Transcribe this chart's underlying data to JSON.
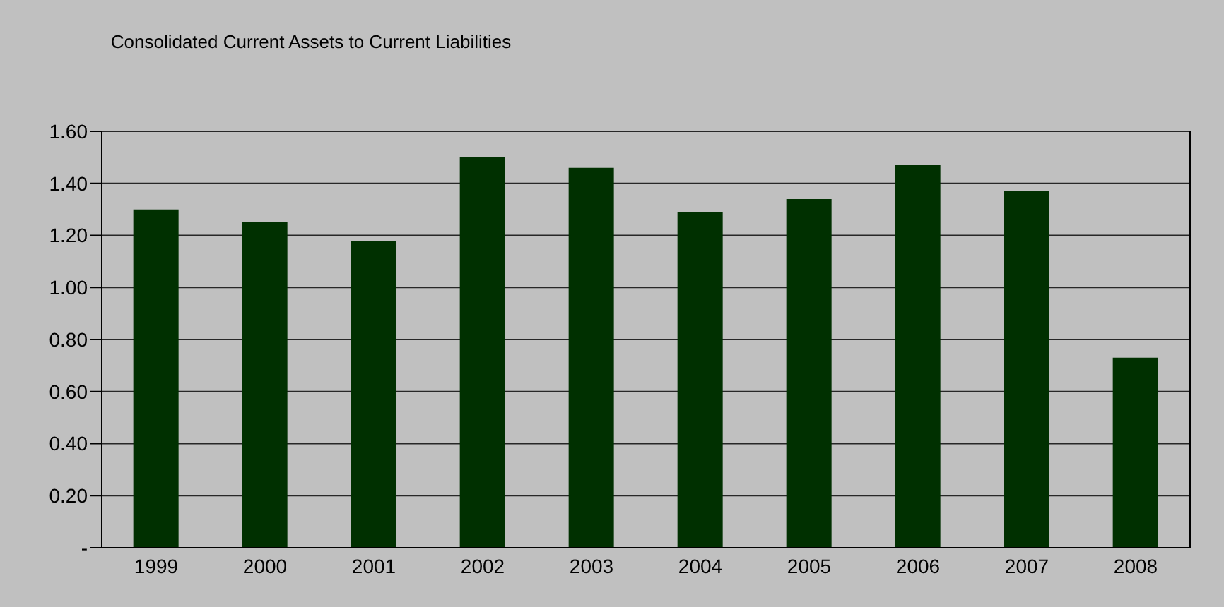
{
  "chart_data": {
    "type": "bar",
    "title": "Consolidated Current Assets to Current Liabilities",
    "categories": [
      "1999",
      "2000",
      "2001",
      "2002",
      "2003",
      "2004",
      "2005",
      "2006",
      "2007",
      "2008"
    ],
    "values": [
      1.3,
      1.25,
      1.18,
      1.5,
      1.46,
      1.29,
      1.34,
      1.47,
      1.37,
      0.73
    ],
    "color": "#003000",
    "ylim": [
      0,
      1.6
    ],
    "yticks": [
      {
        "value": 0,
        "label": "-"
      },
      {
        "value": 0.2,
        "label": "0.20"
      },
      {
        "value": 0.4,
        "label": "0.40"
      },
      {
        "value": 0.6,
        "label": "0.60"
      },
      {
        "value": 0.8,
        "label": "0.80"
      },
      {
        "value": 1,
        "label": "1.00"
      },
      {
        "value": 1.2,
        "label": "1.20"
      },
      {
        "value": 1.4,
        "label": "1.40"
      },
      {
        "value": 1.6,
        "label": "1.60"
      }
    ],
    "grid": "y"
  }
}
